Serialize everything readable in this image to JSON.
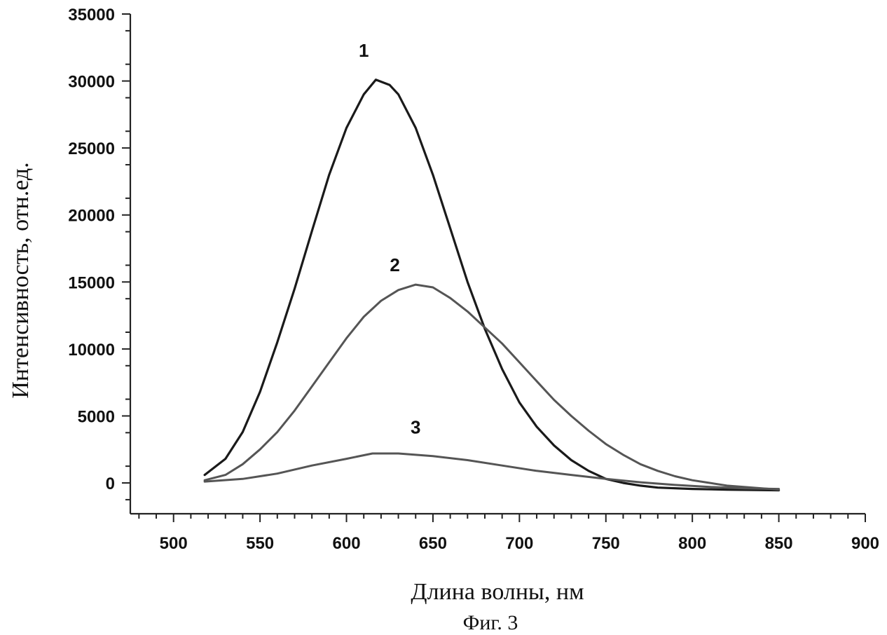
{
  "chart_data": {
    "type": "line",
    "xlabel": "Длина волны, нм",
    "ylabel": "Интенсивность, отн.ед.",
    "caption": "Фиг. 3",
    "xlim": [
      475,
      900
    ],
    "ylim": [
      -2300,
      35000
    ],
    "x_ticks": [
      500,
      550,
      600,
      650,
      700,
      750,
      800,
      850,
      900
    ],
    "y_ticks": [
      0,
      5000,
      10000,
      15000,
      20000,
      25000,
      30000,
      35000
    ],
    "x_minor_step": 10,
    "y_minor_step": 2500,
    "grid": false,
    "series": [
      {
        "name": "1",
        "color": "#1a1a1a",
        "label_pos": [
          610,
          31800
        ],
        "points": [
          [
            518,
            600
          ],
          [
            530,
            1800
          ],
          [
            540,
            3800
          ],
          [
            550,
            6800
          ],
          [
            560,
            10500
          ],
          [
            570,
            14500
          ],
          [
            580,
            18800
          ],
          [
            590,
            23000
          ],
          [
            600,
            26500
          ],
          [
            610,
            29000
          ],
          [
            617,
            30100
          ],
          [
            625,
            29700
          ],
          [
            630,
            29000
          ],
          [
            640,
            26500
          ],
          [
            650,
            23000
          ],
          [
            660,
            19000
          ],
          [
            670,
            15000
          ],
          [
            680,
            11500
          ],
          [
            690,
            8500
          ],
          [
            700,
            6000
          ],
          [
            710,
            4200
          ],
          [
            720,
            2800
          ],
          [
            730,
            1700
          ],
          [
            740,
            900
          ],
          [
            750,
            300
          ],
          [
            760,
            0
          ],
          [
            770,
            -200
          ],
          [
            780,
            -350
          ],
          [
            800,
            -450
          ],
          [
            820,
            -500
          ],
          [
            850,
            -550
          ]
        ]
      },
      {
        "name": "2",
        "color": "#555555",
        "label_pos": [
          628,
          15800
        ],
        "points": [
          [
            518,
            200
          ],
          [
            530,
            600
          ],
          [
            540,
            1400
          ],
          [
            550,
            2500
          ],
          [
            560,
            3800
          ],
          [
            570,
            5400
          ],
          [
            580,
            7200
          ],
          [
            590,
            9000
          ],
          [
            600,
            10800
          ],
          [
            610,
            12400
          ],
          [
            620,
            13600
          ],
          [
            630,
            14400
          ],
          [
            640,
            14800
          ],
          [
            650,
            14600
          ],
          [
            660,
            13800
          ],
          [
            670,
            12800
          ],
          [
            680,
            11600
          ],
          [
            690,
            10400
          ],
          [
            700,
            9000
          ],
          [
            710,
            7600
          ],
          [
            720,
            6200
          ],
          [
            730,
            5000
          ],
          [
            740,
            3900
          ],
          [
            750,
            2900
          ],
          [
            760,
            2100
          ],
          [
            770,
            1400
          ],
          [
            780,
            900
          ],
          [
            790,
            500
          ],
          [
            800,
            200
          ],
          [
            810,
            0
          ],
          [
            820,
            -200
          ],
          [
            835,
            -350
          ],
          [
            850,
            -500
          ]
        ]
      },
      {
        "name": "3",
        "color": "#555555",
        "label_pos": [
          640,
          3700
        ],
        "points": [
          [
            518,
            100
          ],
          [
            540,
            300
          ],
          [
            560,
            700
          ],
          [
            580,
            1300
          ],
          [
            600,
            1800
          ],
          [
            615,
            2200
          ],
          [
            630,
            2200
          ],
          [
            650,
            2000
          ],
          [
            670,
            1700
          ],
          [
            690,
            1300
          ],
          [
            710,
            900
          ],
          [
            730,
            600
          ],
          [
            750,
            300
          ],
          [
            770,
            50
          ],
          [
            790,
            -150
          ],
          [
            810,
            -300
          ],
          [
            830,
            -400
          ],
          [
            850,
            -450
          ]
        ]
      }
    ]
  }
}
